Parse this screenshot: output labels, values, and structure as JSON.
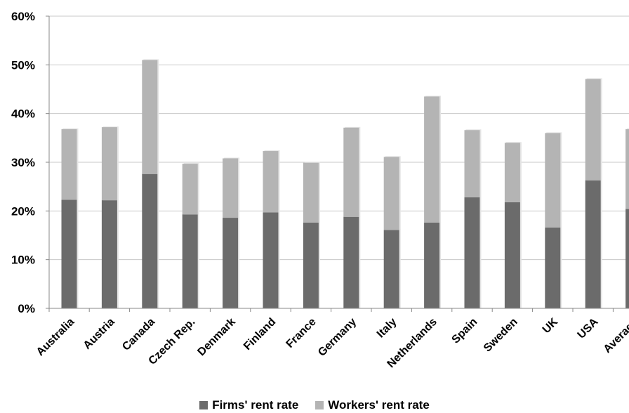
{
  "chart_data": {
    "type": "bar",
    "stacked": true,
    "categories": [
      "Australia",
      "Austria",
      "Canada",
      "Czech Rep.",
      "Denmark",
      "Finland",
      "France",
      "Germany",
      "Italy",
      "Netherlands",
      "Spain",
      "Sweden",
      "UK",
      "USA",
      "Average"
    ],
    "series": [
      {
        "name": "Firms' rent rate",
        "color": "#6b6b6b",
        "values": [
          22.3,
          22.2,
          27.6,
          19.3,
          18.6,
          19.7,
          17.6,
          18.8,
          16.1,
          17.6,
          22.8,
          21.8,
          16.6,
          26.3,
          20.4
        ]
      },
      {
        "name": "Workers' rent rate",
        "color": "#b4b4b4",
        "values": [
          14.5,
          15.0,
          23.4,
          10.4,
          12.2,
          12.6,
          12.3,
          18.3,
          15.0,
          25.9,
          13.8,
          12.2,
          19.4,
          20.8,
          16.4
        ]
      }
    ],
    "ylim": [
      0,
      60
    ],
    "yticks": [
      "0%",
      "10%",
      "20%",
      "30%",
      "40%",
      "50%",
      "60%"
    ],
    "grid": true,
    "legend_position": "bottom"
  }
}
